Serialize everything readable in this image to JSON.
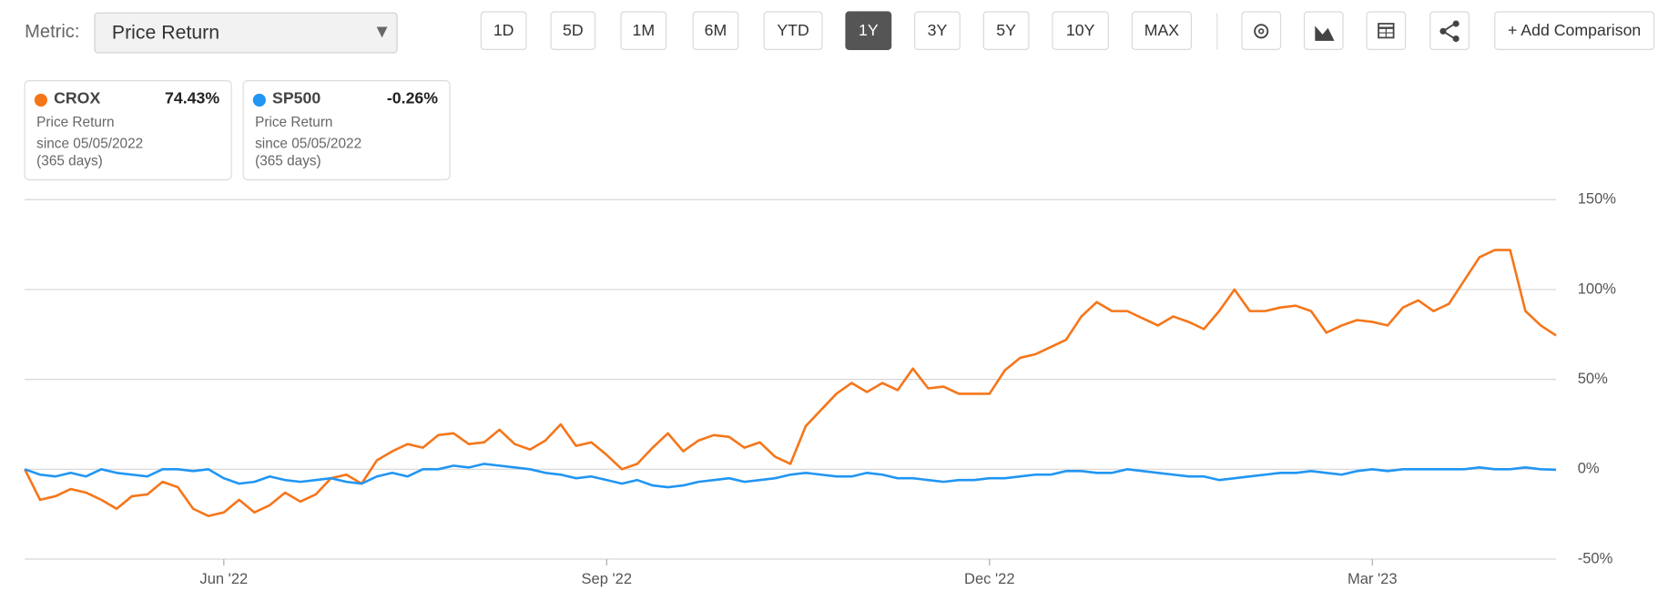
{
  "toolbar": {
    "metric_label": "Metric:",
    "metric_value": "Price Return",
    "periods": [
      "1D",
      "5D",
      "1M",
      "6M",
      "YTD",
      "1Y",
      "3Y",
      "5Y",
      "10Y",
      "MAX"
    ],
    "active_period": "1Y",
    "add_comparison": "+ Add Comparison"
  },
  "cards": [
    {
      "name": "CROX",
      "summary": "74.43%",
      "metric": "Price Return",
      "since": "since 05/05/2022",
      "days": "(365 days)"
    },
    {
      "name": "SP500",
      "summary": "-0.26%",
      "metric": "Price Return",
      "since": "since 05/05/2022",
      "days": "(365 days)"
    }
  ],
  "chart_data": {
    "type": "line",
    "categories": [
      null,
      null,
      null,
      null,
      null,
      null,
      null,
      null,
      null,
      null,
      null,
      null,
      null,
      "Jun '22",
      null,
      null,
      null,
      null,
      null,
      null,
      null,
      null,
      null,
      null,
      null,
      null,
      null,
      null,
      null,
      null,
      null,
      null,
      null,
      null,
      null,
      null,
      null,
      null,
      "Sep '22",
      null,
      null,
      null,
      null,
      null,
      null,
      null,
      null,
      null,
      null,
      null,
      null,
      null,
      null,
      null,
      null,
      null,
      null,
      null,
      null,
      null,
      null,
      null,
      null,
      "Dec '22",
      null,
      null,
      null,
      null,
      null,
      null,
      null,
      null,
      null,
      null,
      null,
      null,
      null,
      null,
      null,
      null,
      null,
      null,
      null,
      null,
      null,
      null,
      null,
      null,
      "Mar '23",
      null,
      null,
      null,
      null,
      null,
      null,
      null,
      null,
      null,
      null,
      null,
      null
    ],
    "series": [
      {
        "name": "CROX",
        "color": "#f5761a",
        "values": [
          0,
          -17,
          -15,
          -11,
          -13,
          -17,
          -22,
          -15,
          -14,
          -7,
          -10,
          -22,
          -26,
          -24,
          -17,
          -24,
          -20,
          -13,
          -18,
          -14,
          -5,
          -3,
          -8,
          5,
          10,
          14,
          12,
          19,
          20,
          14,
          15,
          22,
          14,
          11,
          16,
          25,
          13,
          15,
          8,
          0,
          3,
          12,
          20,
          10,
          16,
          19,
          18,
          12,
          15,
          7,
          3,
          24,
          33,
          42,
          48,
          43,
          48,
          44,
          56,
          45,
          46,
          42,
          42,
          42,
          55,
          62,
          64,
          68,
          72,
          85,
          93,
          88,
          88,
          84,
          80,
          85,
          82,
          78,
          88,
          100,
          88,
          88,
          90,
          91,
          88,
          76,
          80,
          83,
          82,
          80,
          90,
          94,
          88,
          92,
          105,
          118,
          122,
          122,
          88,
          80,
          74.43
        ]
      },
      {
        "name": "SP500",
        "color": "#2196f3",
        "values": [
          0,
          -3,
          -4,
          -2,
          -4,
          0,
          -2,
          -3,
          -4,
          0,
          0,
          -1,
          0,
          -5,
          -8,
          -7,
          -4,
          -6,
          -7,
          -6,
          -5,
          -7,
          -8,
          -4,
          -2,
          -4,
          0,
          0,
          2,
          1,
          3,
          2,
          1,
          0,
          -2,
          -3,
          -5,
          -4,
          -6,
          -8,
          -6,
          -9,
          -10,
          -9,
          -7,
          -6,
          -5,
          -7,
          -6,
          -5,
          -3,
          -2,
          -3,
          -4,
          -4,
          -2,
          -3,
          -5,
          -5,
          -6,
          -7,
          -6,
          -6,
          -5,
          -5,
          -4,
          -3,
          -3,
          -1,
          -1,
          -2,
          -2,
          0,
          -1,
          -2,
          -3,
          -4,
          -4,
          -6,
          -5,
          -4,
          -3,
          -2,
          -2,
          -1,
          -2,
          -3,
          -1,
          0,
          -1,
          0,
          0,
          0,
          0,
          0,
          1,
          0,
          0,
          1,
          0,
          -0.26
        ]
      }
    ],
    "ylim": [
      -50,
      150
    ],
    "yticks": [
      {
        "value": -50,
        "label": "-50%"
      },
      {
        "value": 0,
        "label": "0%"
      },
      {
        "value": 50,
        "label": "50%"
      },
      {
        "value": 100,
        "label": "100%"
      },
      {
        "value": 150,
        "label": "150%"
      }
    ],
    "grid": true
  }
}
